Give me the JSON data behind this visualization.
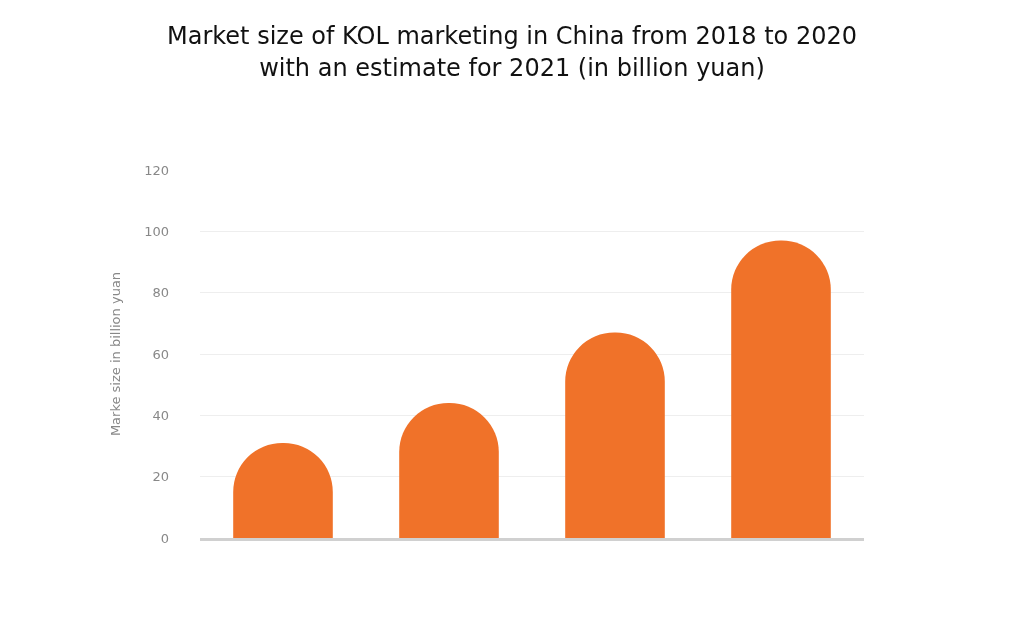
{
  "chart_data": {
    "type": "bar",
    "title": "Market size of KOL marketing in China from 2018 to 2020 with an estimate for 2021 (in billion yuan)",
    "ylabel": "Marke size in billion yuan",
    "categories": [
      null,
      null,
      null,
      null
    ],
    "values": [
      31,
      44,
      67,
      97
    ],
    "color": "#f07229",
    "ylim": [
      0,
      120
    ],
    "yticks": [
      0,
      20,
      40,
      60,
      80,
      100,
      120
    ],
    "grid": "y",
    "tick_labels": "y"
  }
}
